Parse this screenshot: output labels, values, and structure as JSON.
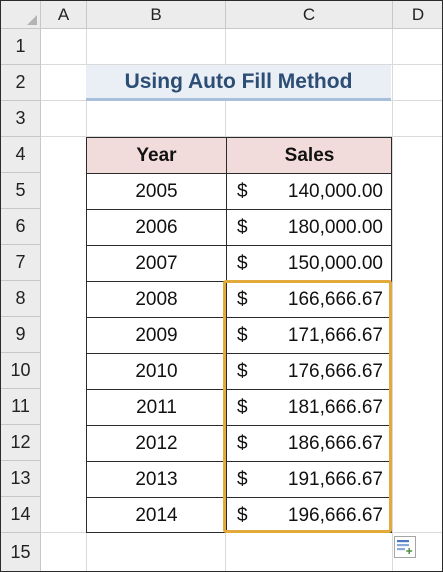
{
  "spreadsheet": {
    "columns": [
      "A",
      "B",
      "C",
      "D"
    ],
    "rows": [
      "1",
      "2",
      "3",
      "4",
      "5",
      "6",
      "7",
      "8",
      "9",
      "10",
      "11",
      "12",
      "13",
      "14",
      "15"
    ],
    "title": "Using Auto Fill Method",
    "table": {
      "headers": {
        "year": "Year",
        "sales": "Sales"
      },
      "currency_symbol": "$",
      "rows": [
        {
          "year": "2005",
          "sales": "140,000.00"
        },
        {
          "year": "2006",
          "sales": "180,000.00"
        },
        {
          "year": "2007",
          "sales": "150,000.00"
        },
        {
          "year": "2008",
          "sales": "166,666.67"
        },
        {
          "year": "2009",
          "sales": "171,666.67"
        },
        {
          "year": "2010",
          "sales": "176,666.67"
        },
        {
          "year": "2011",
          "sales": "181,666.67"
        },
        {
          "year": "2012",
          "sales": "186,666.67"
        },
        {
          "year": "2013",
          "sales": "191,666.67"
        },
        {
          "year": "2014",
          "sales": "196,666.67"
        }
      ]
    },
    "autofill_icon": "auto-fill-options-icon",
    "colors": {
      "title_text": "#2c4d74",
      "title_background": "#eaeff6",
      "title_underline": "#a9c0dd",
      "header_fill": "#f2dcdb",
      "fill_highlight": "#e2a93b"
    }
  }
}
